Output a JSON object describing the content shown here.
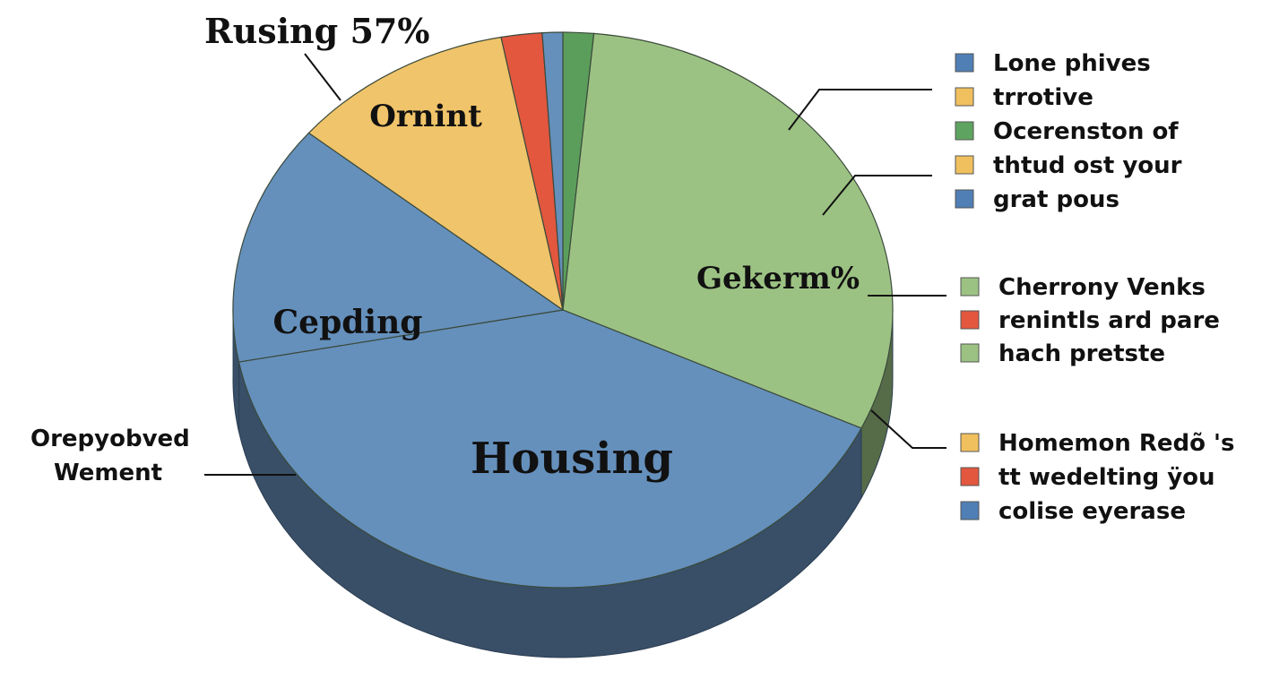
{
  "chart_data": {
    "type": "pie",
    "title": "",
    "callout_title": "Rusing 57%",
    "side_annotation": [
      "Orepyobved",
      "Wement"
    ],
    "slices": [
      {
        "label": "",
        "value": 1.5,
        "color": "#5b9e5b"
      },
      {
        "label": "Gekerm%",
        "value": 30.5,
        "color": "#9cc283"
      },
      {
        "label": "Housing",
        "value": 40.0,
        "color": "#6590bc"
      },
      {
        "label": "Cepding",
        "value": 14.0,
        "color": "#6590bc"
      },
      {
        "label": "Ornint",
        "value": 11.0,
        "color": "#f0c46a"
      },
      {
        "label": "",
        "value": 2.0,
        "color": "#e3573f"
      },
      {
        "label": "",
        "value": 1.0,
        "color": "#6590bc"
      }
    ],
    "legend_groups": [
      [
        {
          "label": "Lone phives",
          "color": "#4f7fb5"
        },
        {
          "label": "trrotive",
          "color": "#f0c05e"
        },
        {
          "label": "Ocerenston of",
          "color": "#5ea460"
        },
        {
          "label": "thtud ost your",
          "color": "#f0c05e"
        },
        {
          "label": "grat pous",
          "color": "#4f7fb5"
        }
      ],
      [
        {
          "label": "Cherrony Venks",
          "color": "#9cc283"
        },
        {
          "label": "renintls ard pare",
          "color": "#e3573f"
        },
        {
          "label": "hach pretste",
          "color": "#9cc283"
        }
      ],
      [
        {
          "label": "Homemon Redõ 's",
          "color": "#f0c05e"
        },
        {
          "label": "tt wedelting ÿou",
          "color": "#e3573f"
        },
        {
          "label": "colise eyerase",
          "color": "#4f7fb5"
        }
      ]
    ],
    "legend": "right"
  }
}
